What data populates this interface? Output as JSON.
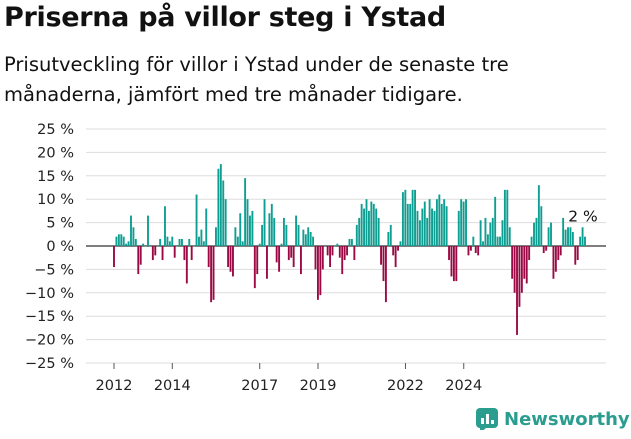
{
  "title": "Priserna på villor steg i Ystad",
  "subtitle": "Prisutveckling för villor i Ystad under de senaste tre månaderna, jämfört med tre månader tidigare.",
  "brand": {
    "name": "Newsworthy",
    "icon": "newsworthy-chart-icon"
  },
  "colors": {
    "positive": "#0f9e92",
    "negative": "#9b0a45",
    "grid": "#dddddd",
    "zero": "#333333",
    "axis_text": "#222222"
  },
  "chart_data": {
    "type": "bar",
    "title": "",
    "xlabel": "",
    "ylabel": "",
    "ylim": [
      -25,
      25
    ],
    "yticks": [
      25,
      20,
      15,
      10,
      5,
      0,
      -5,
      -10,
      -15,
      -20,
      -25
    ],
    "ytick_labels": [
      "25 %",
      "20 %",
      "15 %",
      "10 %",
      "5 %",
      "0 %",
      "−5 %",
      "−10 %",
      "−15 %",
      "−20 %",
      "−25 %"
    ],
    "xtick_labels": [
      "2012",
      "2014",
      "2017",
      "2019",
      "2022",
      "2024"
    ],
    "xtick_years": [
      2012,
      2014,
      2017,
      2019,
      2022,
      2024
    ],
    "x_start": 2012.0,
    "x_step_years": 0.0833,
    "grid": true,
    "annotation": {
      "text": "2 %",
      "value": 2
    },
    "values": [
      -4.5,
      2,
      2.5,
      2.5,
      2,
      0.5,
      1,
      6.5,
      4,
      1.5,
      -6,
      -4,
      0.5,
      0,
      6.5,
      0,
      -3,
      -2,
      0,
      1.5,
      -3,
      8.5,
      2,
      1,
      2,
      -2.5,
      0,
      1.5,
      1.5,
      -3,
      -8,
      1.5,
      -3,
      0,
      11,
      2,
      3.5,
      1,
      8,
      -4.5,
      -12,
      -11.5,
      4,
      16.5,
      17.5,
      14,
      10,
      -4.5,
      -5.5,
      -6.5,
      4,
      2,
      7,
      1,
      14.5,
      10,
      6.5,
      7.5,
      -9,
      -6,
      0.5,
      4.5,
      10,
      -7,
      7,
      9,
      6,
      -3.5,
      -5.5,
      0.5,
      6,
      4.5,
      -3,
      -2.5,
      -4.5,
      6.5,
      4.5,
      -6,
      3.5,
      2.5,
      4,
      3,
      2,
      -5,
      -11.5,
      -10.5,
      -5,
      0,
      -2,
      -4.5,
      -2,
      0,
      0.5,
      -2.5,
      -6,
      -3,
      -2,
      1.5,
      1.5,
      -3,
      4.5,
      6,
      9,
      8,
      10,
      7.5,
      9.5,
      9,
      8,
      6,
      -4,
      -7.5,
      -12,
      3,
      4.5,
      -2,
      -4.5,
      -1,
      1,
      11.5,
      12,
      9,
      9,
      12,
      12,
      7.5,
      5.5,
      8,
      9.5,
      6,
      10,
      8,
      7.5,
      10,
      11,
      9,
      10,
      8.5,
      -3,
      -6.5,
      -7.5,
      -7.5,
      7.5,
      10,
      9.5,
      10,
      -2,
      -1,
      2,
      -1.5,
      -2,
      5.5,
      1,
      6,
      2.5,
      5,
      6,
      10.5,
      2,
      2,
      5.5,
      12,
      12,
      4,
      -7,
      -10,
      -19,
      -13,
      -10,
      -7,
      -8,
      -3,
      2,
      5,
      6,
      13,
      8.5,
      -1.5,
      -1,
      4,
      5,
      -7,
      -5.5,
      -3,
      -2,
      6,
      3.5,
      4,
      4,
      3,
      -4,
      -3,
      2,
      4,
      2
    ]
  }
}
